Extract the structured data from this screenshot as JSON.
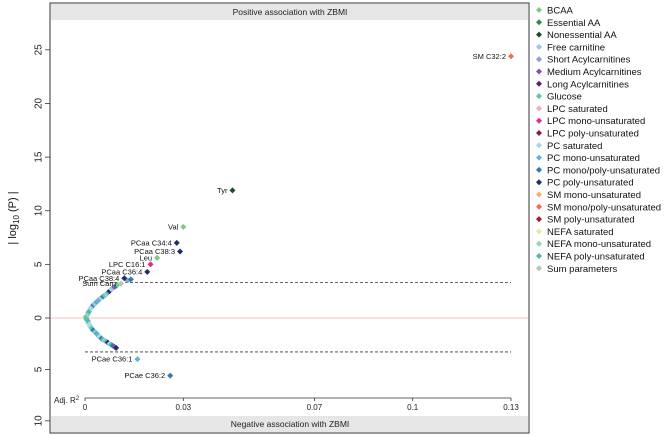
{
  "chart_data": {
    "type": "scatter",
    "title": "",
    "band_top": "Positive association with ZBMI",
    "band_bottom": "Negative association with ZBMI",
    "ylabel": "| log10 (P) |",
    "ylabel_parts": {
      "pre": "| log",
      "sub": "10",
      "post": " (P) |"
    },
    "xlabel_prefix": "Adj. R",
    "xlabel_sup": "2",
    "x_ticks": [
      {
        "value": 0,
        "label": "0"
      },
      {
        "value": 0.03,
        "label": "0.03"
      },
      {
        "value": 0.07,
        "label": "0.07"
      },
      {
        "value": 0.1,
        "label": "0.1"
      },
      {
        "value": 0.13,
        "label": "0.13"
      }
    ],
    "y_ticks_top": [
      {
        "value": 0,
        "label": "0"
      },
      {
        "value": 5,
        "label": "5"
      },
      {
        "value": 10,
        "label": "10"
      },
      {
        "value": 15,
        "label": "15"
      },
      {
        "value": 20,
        "label": "20"
      },
      {
        "value": 25,
        "label": "25"
      }
    ],
    "y_ticks_bottom": [
      {
        "value": 5,
        "label": "5"
      },
      {
        "value": 10,
        "label": "10"
      }
    ],
    "ylim_top": 27.5,
    "ylim_bottom": 10.5,
    "significance_threshold": 3.3,
    "legend_position": "right",
    "legend": [
      {
        "name": "BCAA",
        "color": "#7fc97f"
      },
      {
        "name": "Essential AA",
        "color": "#2e8b46"
      },
      {
        "name": "Nonessential AA",
        "color": "#1b4d2a"
      },
      {
        "name": "Free carnitine",
        "color": "#9ec3e6"
      },
      {
        "name": "Short Acylcarnitines",
        "color": "#8fa0d0"
      },
      {
        "name": "Medium Acylcarnitines",
        "color": "#8b4fa3"
      },
      {
        "name": "Long Acylcarnitines",
        "color": "#5a1f6e"
      },
      {
        "name": "Glucose",
        "color": "#66c2a5"
      },
      {
        "name": "LPC saturated",
        "color": "#f4a6c8"
      },
      {
        "name": "LPC mono-unsaturated",
        "color": "#e7298a"
      },
      {
        "name": "LPC poly-unsaturated",
        "color": "#8b1a4a"
      },
      {
        "name": "PC saturated",
        "color": "#a6d8ea"
      },
      {
        "name": "PC mono-unsaturated",
        "color": "#5fb4d9"
      },
      {
        "name": "PC mono/poly-unsaturated",
        "color": "#2c7bb6"
      },
      {
        "name": "PC poly-unsaturated",
        "color": "#1a2f6b"
      },
      {
        "name": "SM mono-unsaturated",
        "color": "#fdae6b"
      },
      {
        "name": "SM mono/poly-unsaturated",
        "color": "#f26b4f"
      },
      {
        "name": "SM poly-unsaturated",
        "color": "#b2182b"
      },
      {
        "name": "NEFA saturated",
        "color": "#d9f0a3"
      },
      {
        "name": "NEFA mono-unsaturated",
        "color": "#9ad4b8"
      },
      {
        "name": "NEFA poly-unsaturated",
        "color": "#4fb8b0"
      },
      {
        "name": "Sum parameters",
        "color": "#b8c4b8"
      }
    ],
    "labeled_points": [
      {
        "label": "SM C32:2",
        "x": 0.13,
        "y": 24.4,
        "color": "#f26b4f",
        "anchor": "end"
      },
      {
        "label": "Tyr",
        "x": 0.045,
        "y": 11.9,
        "color": "#1b4d2a",
        "anchor": "end"
      },
      {
        "label": "Val",
        "x": 0.03,
        "y": 8.5,
        "color": "#7fc97f",
        "anchor": "end"
      },
      {
        "label": "PCaa C34:4",
        "x": 0.028,
        "y": 7.0,
        "color": "#1a2f6b",
        "anchor": "end"
      },
      {
        "label": "PCaa C38:3",
        "x": 0.029,
        "y": 6.2,
        "color": "#1a2f6b",
        "anchor": "end"
      },
      {
        "label": "Leu",
        "x": 0.022,
        "y": 5.6,
        "color": "#7fc97f",
        "anchor": "end"
      },
      {
        "label": "LPC C16:1",
        "x": 0.02,
        "y": 5.0,
        "color": "#e7298a",
        "anchor": "end"
      },
      {
        "label": "PCaa C36:4",
        "x": 0.019,
        "y": 4.3,
        "color": "#1a2f6b",
        "anchor": "end"
      },
      {
        "label": "PCaa C38:4",
        "x": 0.012,
        "y": 3.7,
        "color": "#1a2f6b",
        "anchor": "end"
      },
      {
        "label": "Sum Carn",
        "x": 0.011,
        "y": 3.2,
        "color": "#b8c4b8",
        "anchor": "end"
      },
      {
        "label": "PCae C36:1",
        "x": 0.016,
        "y": -4.0,
        "color": "#5fb4d9",
        "anchor": "end"
      },
      {
        "label": "PCae C36:2",
        "x": 0.026,
        "y": -5.6,
        "color": "#2c7bb6",
        "anchor": "end"
      }
    ],
    "background_points": [
      {
        "x": 0.0005,
        "y": 0.2,
        "color": "#9ad4b8"
      },
      {
        "x": 0.001,
        "y": 0.5,
        "color": "#5fb4d9"
      },
      {
        "x": 0.0015,
        "y": 0.8,
        "color": "#a6d8ea"
      },
      {
        "x": 0.002,
        "y": 1.0,
        "color": "#66c2a5"
      },
      {
        "x": 0.0025,
        "y": 1.2,
        "color": "#2c7bb6"
      },
      {
        "x": 0.003,
        "y": 1.3,
        "color": "#9ec3e6"
      },
      {
        "x": 0.0035,
        "y": 1.5,
        "color": "#4fb8b0"
      },
      {
        "x": 0.004,
        "y": 1.6,
        "color": "#5fb4d9"
      },
      {
        "x": 0.0045,
        "y": 1.8,
        "color": "#8fa0d0"
      },
      {
        "x": 0.005,
        "y": 1.9,
        "color": "#a6d8ea"
      },
      {
        "x": 0.0055,
        "y": 2.0,
        "color": "#2c7bb6"
      },
      {
        "x": 0.006,
        "y": 2.1,
        "color": "#66c2a5"
      },
      {
        "x": 0.0065,
        "y": 2.2,
        "color": "#9ad4b8"
      },
      {
        "x": 0.007,
        "y": 2.4,
        "color": "#5fb4d9"
      },
      {
        "x": 0.0075,
        "y": 2.5,
        "color": "#1a2f6b"
      },
      {
        "x": 0.008,
        "y": 2.7,
        "color": "#a6d8ea"
      },
      {
        "x": 0.0085,
        "y": 2.8,
        "color": "#9ec3e6"
      },
      {
        "x": 0.009,
        "y": 2.9,
        "color": "#8b4fa3"
      },
      {
        "x": 0.0095,
        "y": 3.0,
        "color": "#2c7bb6"
      },
      {
        "x": 0.01,
        "y": 3.1,
        "color": "#7fc97f"
      },
      {
        "x": 0.013,
        "y": 3.5,
        "color": "#8fa0d0"
      },
      {
        "x": 0.014,
        "y": 3.6,
        "color": "#2c7bb6"
      },
      {
        "x": 0.0003,
        "y": 0.1,
        "color": "#66c2a5"
      },
      {
        "x": 0.0008,
        "y": 0.3,
        "color": "#9ad4b8"
      },
      {
        "x": 0.0012,
        "y": 0.6,
        "color": "#4fb8b0"
      },
      {
        "x": 0.0018,
        "y": 0.9,
        "color": "#a6d8ea"
      },
      {
        "x": 0.0006,
        "y": -0.2,
        "color": "#5fb4d9"
      },
      {
        "x": 0.001,
        "y": -0.5,
        "color": "#9ad4b8"
      },
      {
        "x": 0.0015,
        "y": -0.8,
        "color": "#a6d8ea"
      },
      {
        "x": 0.002,
        "y": -1.0,
        "color": "#66c2a5"
      },
      {
        "x": 0.0025,
        "y": -1.2,
        "color": "#2c7bb6"
      },
      {
        "x": 0.003,
        "y": -1.4,
        "color": "#9ec3e6"
      },
      {
        "x": 0.0035,
        "y": -1.5,
        "color": "#4fb8b0"
      },
      {
        "x": 0.004,
        "y": -1.7,
        "color": "#5fb4d9"
      },
      {
        "x": 0.0045,
        "y": -1.8,
        "color": "#a6d8ea"
      },
      {
        "x": 0.005,
        "y": -2.0,
        "color": "#2c7bb6"
      },
      {
        "x": 0.0055,
        "y": -2.1,
        "color": "#66c2a5"
      },
      {
        "x": 0.006,
        "y": -2.2,
        "color": "#9ad4b8"
      },
      {
        "x": 0.0065,
        "y": -2.3,
        "color": "#5fb4d9"
      },
      {
        "x": 0.007,
        "y": -2.4,
        "color": "#1a2f6b"
      },
      {
        "x": 0.0075,
        "y": -2.5,
        "color": "#a6d8ea"
      },
      {
        "x": 0.008,
        "y": -2.6,
        "color": "#4fb8b0"
      },
      {
        "x": 0.0085,
        "y": -2.7,
        "color": "#2c7bb6"
      },
      {
        "x": 0.009,
        "y": -2.8,
        "color": "#8b4fa3"
      },
      {
        "x": 0.0095,
        "y": -2.9,
        "color": "#1a2f6b"
      },
      {
        "x": 0.0004,
        "y": -0.1,
        "color": "#66c2a5"
      },
      {
        "x": 0.0009,
        "y": -0.3,
        "color": "#4fb8b0"
      },
      {
        "x": 0.0013,
        "y": -0.6,
        "color": "#a6d8ea"
      }
    ]
  }
}
